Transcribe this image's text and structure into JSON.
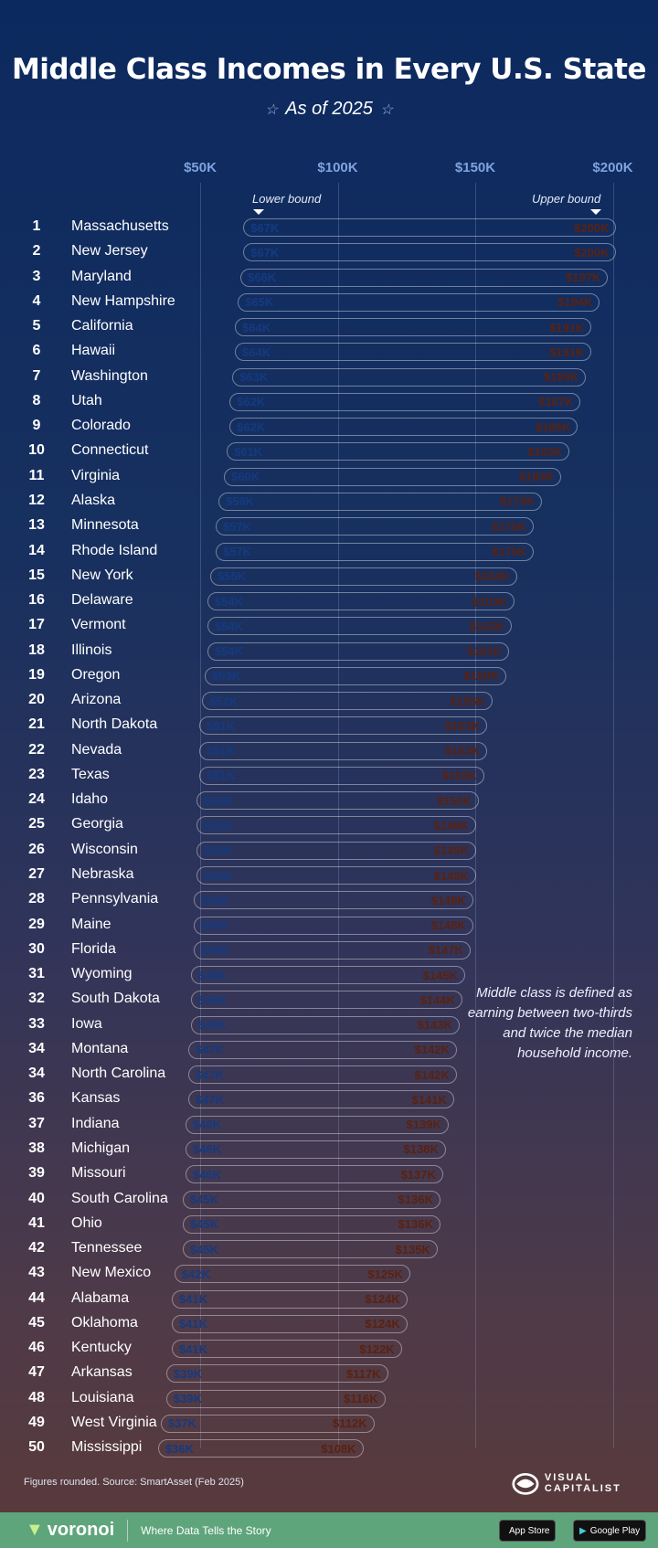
{
  "title": "Middle Class Incomes in Every U.S. State",
  "subtitle": "As of 2025",
  "note": "Middle class is defined as earning between two-thirds and twice the median household income.",
  "source": "Figures rounded. Source: SmartAsset (Feb 2025)",
  "brand": {
    "logo": "VISUAL CAPITALIST",
    "footer_logo": "voronoi",
    "tagline": "Where Data Tells the Story",
    "app_store": "App Store",
    "google_play": "Google Play"
  },
  "colors": {
    "lower": "#7fa6e0",
    "upper": "#e8836a",
    "background_top": "#0c295f",
    "background_bottom": "#5a3a3a",
    "footer": "#5fa57c"
  },
  "chart_data": {
    "type": "bar",
    "subtype": "range",
    "xlim": [
      50,
      200
    ],
    "x_ticks": [
      "$50K",
      "$100K",
      "$150K",
      "$200K"
    ],
    "grid": true,
    "legend": {
      "lower": "Lower bound",
      "upper": "Upper bound"
    },
    "rows": [
      {
        "rank": "1",
        "state": "Massachusetts",
        "lower": 67,
        "upper": 200
      },
      {
        "rank": "2",
        "state": "New Jersey",
        "lower": 67,
        "upper": 200
      },
      {
        "rank": "3",
        "state": "Maryland",
        "lower": 66,
        "upper": 197
      },
      {
        "rank": "4",
        "state": "New Hampshire",
        "lower": 65,
        "upper": 194
      },
      {
        "rank": "5",
        "state": "California",
        "lower": 64,
        "upper": 191
      },
      {
        "rank": "6",
        "state": "Hawaii",
        "lower": 64,
        "upper": 191
      },
      {
        "rank": "7",
        "state": "Washington",
        "lower": 63,
        "upper": 189
      },
      {
        "rank": "8",
        "state": "Utah",
        "lower": 62,
        "upper": 187
      },
      {
        "rank": "9",
        "state": "Colorado",
        "lower": 62,
        "upper": 186
      },
      {
        "rank": "10",
        "state": "Connecticut",
        "lower": 61,
        "upper": 183
      },
      {
        "rank": "11",
        "state": "Virginia",
        "lower": 60,
        "upper": 180
      },
      {
        "rank": "12",
        "state": "Alaska",
        "lower": 58,
        "upper": 173
      },
      {
        "rank": "13",
        "state": "Minnesota",
        "lower": 57,
        "upper": 170
      },
      {
        "rank": "14",
        "state": "Rhode Island",
        "lower": 57,
        "upper": 170
      },
      {
        "rank": "15",
        "state": "New York",
        "lower": 55,
        "upper": 164
      },
      {
        "rank": "16",
        "state": "Delaware",
        "lower": 54,
        "upper": 163
      },
      {
        "rank": "17",
        "state": "Vermont",
        "lower": 54,
        "upper": 162
      },
      {
        "rank": "18",
        "state": "Illinois",
        "lower": 54,
        "upper": 161
      },
      {
        "rank": "19",
        "state": "Oregon",
        "lower": 53,
        "upper": 160
      },
      {
        "rank": "20",
        "state": "Arizona",
        "lower": 52,
        "upper": 155
      },
      {
        "rank": "21",
        "state": "North Dakota",
        "lower": 51,
        "upper": 153
      },
      {
        "rank": "22",
        "state": "Nevada",
        "lower": 51,
        "upper": 153
      },
      {
        "rank": "23",
        "state": "Texas",
        "lower": 51,
        "upper": 152
      },
      {
        "rank": "24",
        "state": "Idaho",
        "lower": 50,
        "upper": 150
      },
      {
        "rank": "25",
        "state": "Georgia",
        "lower": 50,
        "upper": 149
      },
      {
        "rank": "26",
        "state": "Wisconsin",
        "lower": 50,
        "upper": 149
      },
      {
        "rank": "27",
        "state": "Nebraska",
        "lower": 50,
        "upper": 149
      },
      {
        "rank": "28",
        "state": "Pennsylvania",
        "lower": 49,
        "upper": 148
      },
      {
        "rank": "29",
        "state": "Maine",
        "lower": 49,
        "upper": 148
      },
      {
        "rank": "30",
        "state": "Florida",
        "lower": 49,
        "upper": 147
      },
      {
        "rank": "31",
        "state": "Wyoming",
        "lower": 48,
        "upper": 145
      },
      {
        "rank": "32",
        "state": "South Dakota",
        "lower": 48,
        "upper": 144
      },
      {
        "rank": "33",
        "state": "Iowa",
        "lower": 48,
        "upper": 143
      },
      {
        "rank": "34",
        "state": "Montana",
        "lower": 47,
        "upper": 142
      },
      {
        "rank": "34",
        "state": "North Carolina",
        "lower": 47,
        "upper": 142
      },
      {
        "rank": "36",
        "state": "Kansas",
        "lower": 47,
        "upper": 141
      },
      {
        "rank": "37",
        "state": "Indiana",
        "lower": 46,
        "upper": 139
      },
      {
        "rank": "38",
        "state": "Michigan",
        "lower": 46,
        "upper": 138
      },
      {
        "rank": "39",
        "state": "Missouri",
        "lower": 46,
        "upper": 137
      },
      {
        "rank": "40",
        "state": "South Carolina",
        "lower": 45,
        "upper": 136
      },
      {
        "rank": "41",
        "state": "Ohio",
        "lower": 45,
        "upper": 136
      },
      {
        "rank": "42",
        "state": "Tennessee",
        "lower": 45,
        "upper": 135
      },
      {
        "rank": "43",
        "state": "New Mexico",
        "lower": 42,
        "upper": 125
      },
      {
        "rank": "44",
        "state": "Alabama",
        "lower": 41,
        "upper": 124
      },
      {
        "rank": "45",
        "state": "Oklahoma",
        "lower": 41,
        "upper": 124
      },
      {
        "rank": "46",
        "state": "Kentucky",
        "lower": 41,
        "upper": 122
      },
      {
        "rank": "47",
        "state": "Arkansas",
        "lower": 39,
        "upper": 117
      },
      {
        "rank": "48",
        "state": "Louisiana",
        "lower": 39,
        "upper": 116
      },
      {
        "rank": "49",
        "state": "West Virginia",
        "lower": 37,
        "upper": 112
      },
      {
        "rank": "50",
        "state": "Mississippi",
        "lower": 36,
        "upper": 108
      }
    ]
  }
}
